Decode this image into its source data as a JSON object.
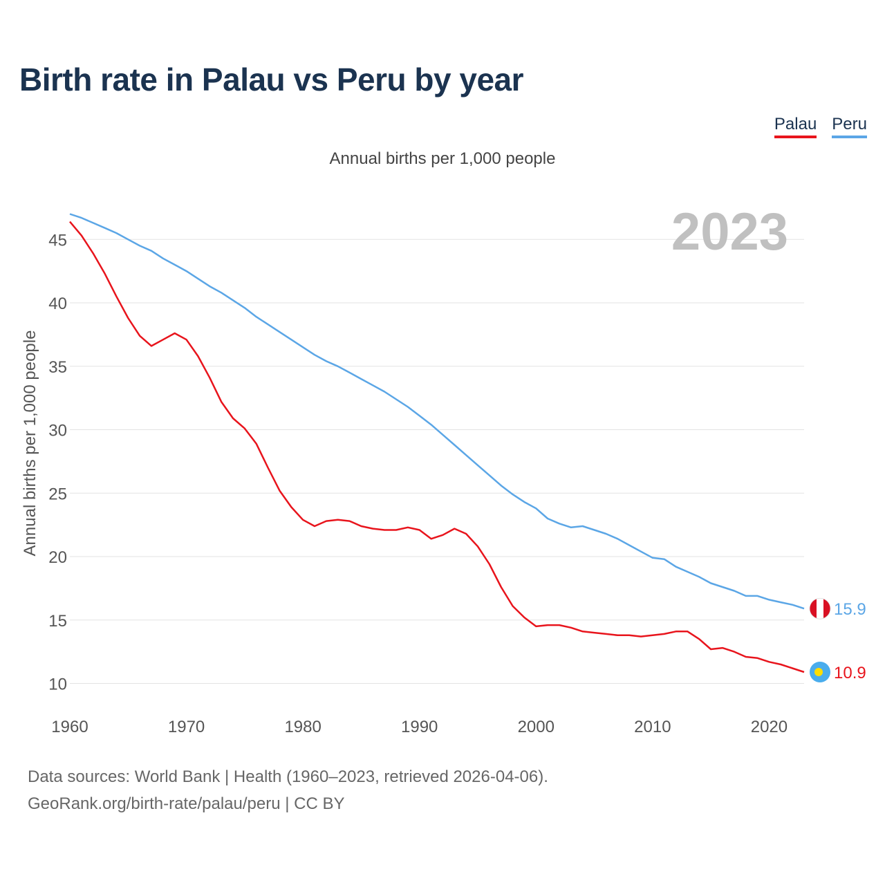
{
  "title": "Birth rate in Palau vs Peru by year",
  "subtitle": "Annual births per 1,000 people",
  "legend": [
    {
      "label": "Palau",
      "color": "#e8141c"
    },
    {
      "label": "Peru",
      "color": "#5ba6e6"
    }
  ],
  "year_watermark": "2023",
  "footer": {
    "source": "Data sources: World Bank | Health (1960–2023, retrieved 2026-04-06).",
    "link": "GeoRank.org/birth-rate/palau/peru | CC BY"
  },
  "chart_data": {
    "type": "line",
    "title": "Birth rate in Palau vs Peru by year",
    "xlabel": "",
    "ylabel": "Annual births per 1,000 people",
    "xlim": [
      1960,
      2023
    ],
    "ylim": [
      10,
      47
    ],
    "x_ticks": [
      1960,
      1970,
      1980,
      1990,
      2000,
      2010,
      2020
    ],
    "y_ticks": [
      10,
      15,
      20,
      25,
      30,
      35,
      40,
      45
    ],
    "grid": true,
    "x": [
      1960,
      1961,
      1962,
      1963,
      1964,
      1965,
      1966,
      1967,
      1968,
      1969,
      1970,
      1971,
      1972,
      1973,
      1974,
      1975,
      1976,
      1977,
      1978,
      1979,
      1980,
      1981,
      1982,
      1983,
      1984,
      1985,
      1986,
      1987,
      1988,
      1989,
      1990,
      1991,
      1992,
      1993,
      1994,
      1995,
      1996,
      1997,
      1998,
      1999,
      2000,
      2001,
      2002,
      2003,
      2004,
      2005,
      2006,
      2007,
      2008,
      2009,
      2010,
      2011,
      2012,
      2013,
      2014,
      2015,
      2016,
      2017,
      2018,
      2019,
      2020,
      2021,
      2022,
      2023
    ],
    "series": [
      {
        "name": "Palau",
        "color": "#e8141c",
        "end_label": "10.9",
        "values": [
          46.4,
          45.3,
          43.9,
          42.3,
          40.5,
          38.8,
          37.4,
          36.6,
          37.1,
          37.6,
          37.1,
          35.8,
          34.1,
          32.2,
          30.9,
          30.1,
          28.9,
          27.0,
          25.2,
          23.9,
          22.9,
          22.4,
          22.8,
          22.9,
          22.8,
          22.4,
          22.2,
          22.1,
          22.1,
          22.3,
          22.1,
          21.4,
          21.7,
          22.2,
          21.8,
          20.8,
          19.4,
          17.6,
          16.1,
          15.2,
          14.5,
          14.6,
          14.6,
          14.4,
          14.1,
          14.0,
          13.9,
          13.8,
          13.8,
          13.7,
          13.8,
          13.9,
          14.1,
          14.1,
          13.5,
          12.7,
          12.8,
          12.5,
          12.1,
          12.0,
          11.7,
          11.5,
          11.2,
          10.9
        ]
      },
      {
        "name": "Peru",
        "color": "#5ba6e6",
        "end_label": "15.9",
        "values": [
          47.0,
          46.7,
          46.3,
          45.9,
          45.5,
          45.0,
          44.5,
          44.1,
          43.5,
          43.0,
          42.5,
          41.9,
          41.3,
          40.8,
          40.2,
          39.6,
          38.9,
          38.3,
          37.7,
          37.1,
          36.5,
          35.9,
          35.4,
          35.0,
          34.5,
          34.0,
          33.5,
          33.0,
          32.4,
          31.8,
          31.1,
          30.4,
          29.6,
          28.8,
          28.0,
          27.2,
          26.4,
          25.6,
          24.9,
          24.3,
          23.8,
          23.0,
          22.6,
          22.3,
          22.4,
          22.1,
          21.8,
          21.4,
          20.9,
          20.4,
          19.9,
          19.8,
          19.2,
          18.8,
          18.4,
          17.9,
          17.6,
          17.3,
          16.9,
          16.9,
          16.6,
          16.4,
          16.2,
          15.9
        ]
      }
    ]
  }
}
